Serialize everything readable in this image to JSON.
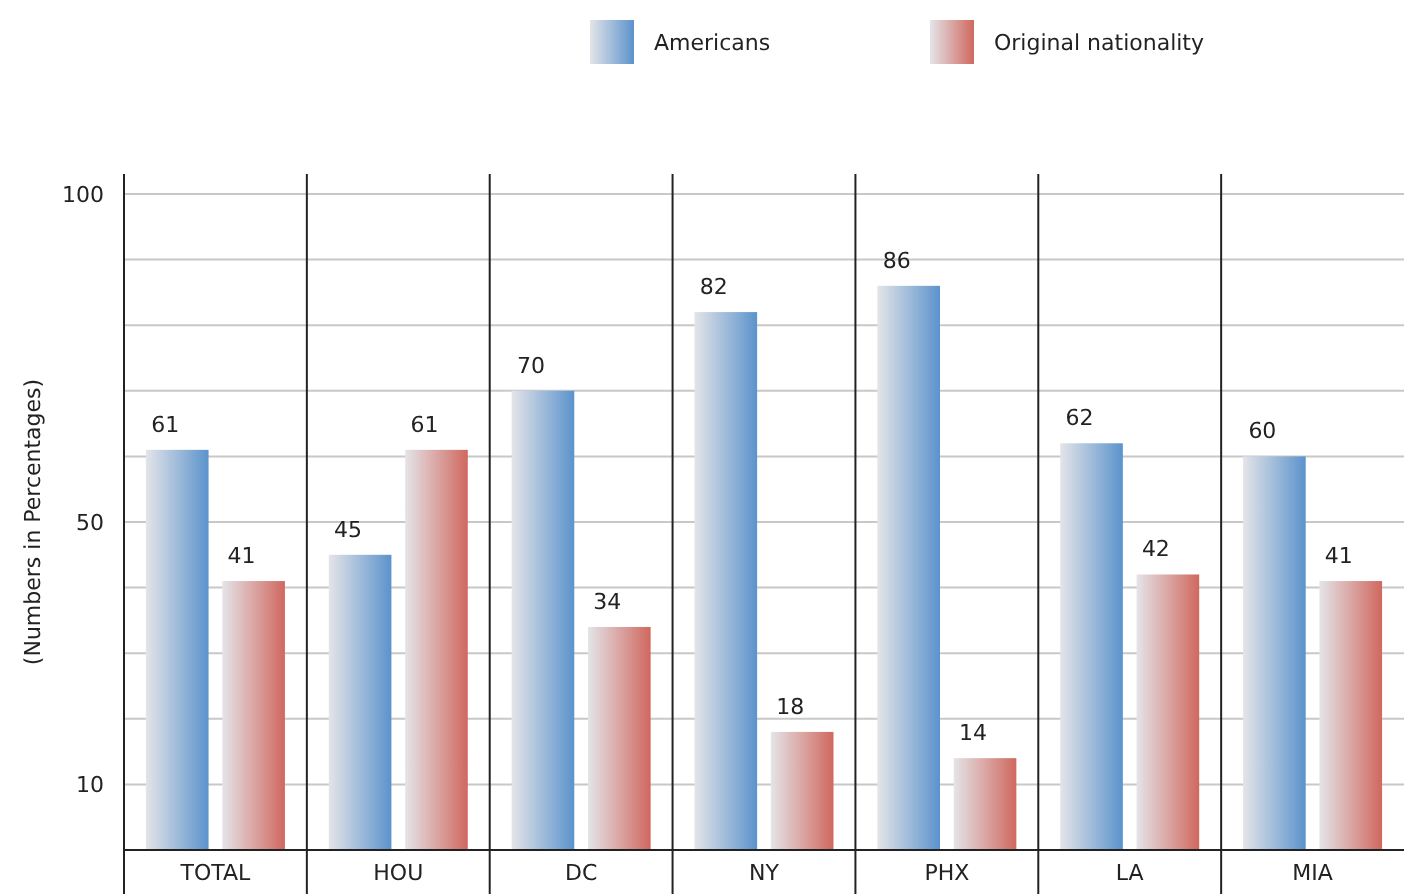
{
  "chart_data": {
    "type": "bar",
    "ylabel": "(Numbers in Percentages)",
    "categories": [
      "TOTAL",
      "HOU",
      "DC",
      "NY",
      "PHX",
      "LA",
      "MIA"
    ],
    "series": [
      {
        "name": "Americans",
        "color": "#5b93cc",
        "values": [
          61,
          45,
          70,
          82,
          86,
          62,
          60
        ]
      },
      {
        "name": "Original nationality",
        "color": "#d0685f",
        "values": [
          41,
          61,
          34,
          18,
          14,
          42,
          41
        ]
      }
    ],
    "ylim": [
      0,
      100
    ],
    "yticks": [
      10,
      {
        "value": 20,
        "label": null
      },
      {
        "value": 30,
        "label": null
      },
      {
        "value": 40,
        "label": null
      },
      50,
      {
        "value": 60,
        "label": null
      },
      {
        "value": 70,
        "label": null
      },
      {
        "value": 80,
        "label": null
      },
      {
        "value": 90,
        "label": null
      },
      100
    ],
    "grid": "y",
    "legend": "top right",
    "data_labels": true
  }
}
